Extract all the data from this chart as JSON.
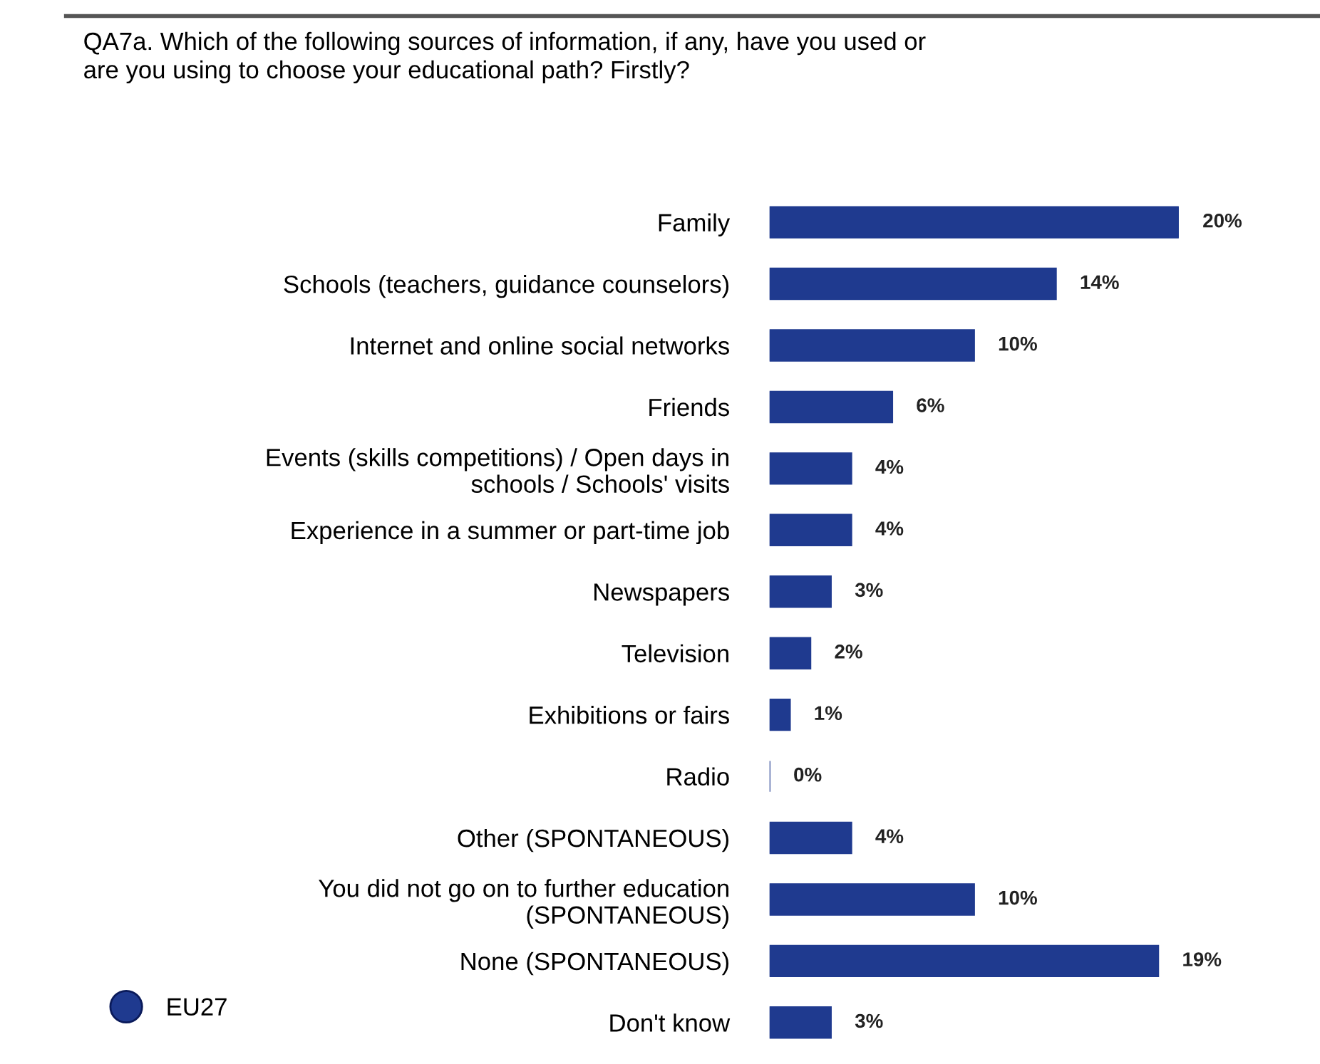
{
  "chart_data": {
    "type": "bar",
    "orientation": "horizontal",
    "title": "QA7a. Which of the following sources of information, if any, have you used or\nare you using to choose your educational path? Firstly?",
    "categories": [
      "Family",
      "Schools (teachers, guidance counselors)",
      "Internet and online social networks",
      "Friends",
      "Events (skills competitions) / Open days in\nschools / Schools' visits",
      "Experience in a summer or part-time job",
      "Newspapers",
      "Television",
      "Exhibitions or fairs",
      "Radio",
      "Other (SPONTANEOUS)",
      "You did not go on to further education\n(SPONTANEOUS)",
      "None (SPONTANEOUS)",
      "Don't know"
    ],
    "series": [
      {
        "name": "EU27",
        "color": "#1f3a8f",
        "values": [
          20,
          14,
          10,
          6,
          4,
          4,
          3,
          2,
          1,
          0,
          4,
          10,
          19,
          3
        ],
        "value_labels": [
          "20%",
          "14%",
          "10%",
          "6%",
          "4%",
          "4%",
          "3%",
          "2%",
          "1%",
          "0%",
          "4%",
          "10%",
          "19%",
          "3%"
        ]
      }
    ],
    "legend": "bottom left",
    "grid": false,
    "tick_labels": "y"
  }
}
